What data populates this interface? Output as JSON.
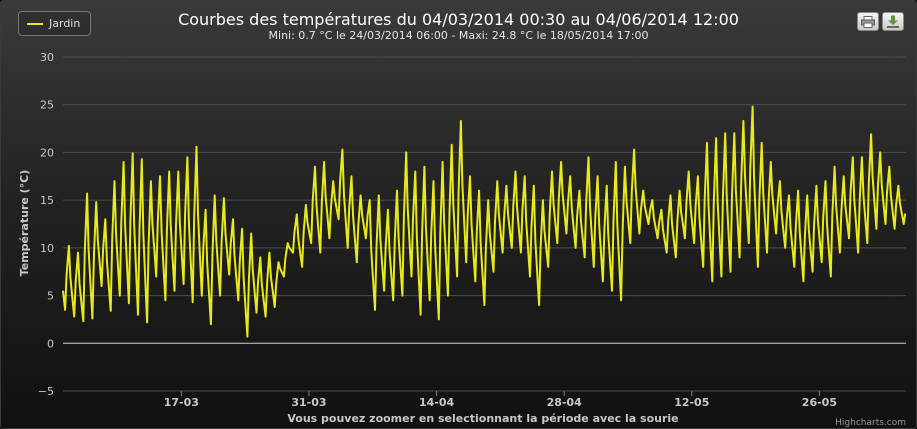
{
  "title": "Courbes des températures du 04/03/2014 00:30 au 04/06/2014 12:00",
  "subtitle": "Mini: 0.7 °C le 24/03/2014 06:00 - Maxi: 24.8 °C le 18/05/2014 17:00",
  "toolbar": {
    "print_icon": "printer-icon",
    "export_icon": "download-icon"
  },
  "credits": "Highcharts.com",
  "colors": {
    "series": "#e8e81e",
    "grid": "#4d4d4d",
    "zero_line": "#cfcfcf"
  },
  "chart_data": {
    "type": "line",
    "title": "Courbes des températures du 04/03/2014 00:30 au 04/06/2014 12:00",
    "subtitle": "Mini: 0.7 °C le 24/03/2014 06:00 - Maxi: 24.8 °C le 18/05/2014 17:00",
    "xlabel": "Vous pouvez zoomer en selectionnant la période avec la sourie",
    "ylabel": "Température (°C)",
    "x_range": [
      "04/03/2014 00:30",
      "04/06/2014 12:00"
    ],
    "x_ticks": [
      "17-03",
      "31-03",
      "14-04",
      "28-04",
      "12-05",
      "26-05"
    ],
    "y_ticks": [
      -5,
      0,
      5,
      10,
      15,
      20,
      25,
      30
    ],
    "ylim": [
      -5,
      30
    ],
    "grid": true,
    "legend_position": "top-left",
    "series": [
      {
        "name": "Jardin",
        "x_dates": [
          "2014-03-04",
          "2014-03-05",
          "2014-03-06",
          "2014-03-07",
          "2014-03-08",
          "2014-03-09",
          "2014-03-10",
          "2014-03-11",
          "2014-03-12",
          "2014-03-13",
          "2014-03-14",
          "2014-03-15",
          "2014-03-16",
          "2014-03-17",
          "2014-03-18",
          "2014-03-19",
          "2014-03-20",
          "2014-03-21",
          "2014-03-22",
          "2014-03-23",
          "2014-03-24",
          "2014-03-25",
          "2014-03-26",
          "2014-03-27",
          "2014-03-28",
          "2014-03-29",
          "2014-03-30",
          "2014-03-31",
          "2014-04-01",
          "2014-04-02",
          "2014-04-03",
          "2014-04-04",
          "2014-04-05",
          "2014-04-06",
          "2014-04-07",
          "2014-04-08",
          "2014-04-09",
          "2014-04-10",
          "2014-04-11",
          "2014-04-12",
          "2014-04-13",
          "2014-04-14",
          "2014-04-15",
          "2014-04-16",
          "2014-04-17",
          "2014-04-18",
          "2014-04-19",
          "2014-04-20",
          "2014-04-21",
          "2014-04-22",
          "2014-04-23",
          "2014-04-24",
          "2014-04-25",
          "2014-04-26",
          "2014-04-27",
          "2014-04-28",
          "2014-04-29",
          "2014-04-30",
          "2014-05-01",
          "2014-05-02",
          "2014-05-03",
          "2014-05-04",
          "2014-05-05",
          "2014-05-06",
          "2014-05-07",
          "2014-05-08",
          "2014-05-09",
          "2014-05-10",
          "2014-05-11",
          "2014-05-12",
          "2014-05-13",
          "2014-05-14",
          "2014-05-15",
          "2014-05-16",
          "2014-05-17",
          "2014-05-18",
          "2014-05-19",
          "2014-05-20",
          "2014-05-21",
          "2014-05-22",
          "2014-05-23",
          "2014-05-24",
          "2014-05-25",
          "2014-05-26",
          "2014-05-27",
          "2014-05-28",
          "2014-05-29",
          "2014-05-30",
          "2014-05-31",
          "2014-06-01",
          "2014-06-02",
          "2014-06-03",
          "2014-06-04"
        ],
        "daily_min": [
          3.5,
          2.8,
          2.3,
          2.6,
          6.0,
          3.4,
          5.0,
          4.2,
          3.0,
          2.2,
          7.0,
          4.5,
          5.5,
          6.2,
          4.3,
          5.0,
          2.0,
          5.0,
          7.2,
          4.5,
          0.7,
          3.2,
          2.8,
          3.8,
          7.0,
          9.5,
          8.0,
          10.5,
          9.5,
          11.0,
          13.0,
          10.0,
          8.5,
          11.0,
          3.5,
          5.5,
          4.5,
          5.0,
          7.0,
          3.0,
          4.5,
          2.5,
          5.0,
          7.0,
          8.5,
          6.5,
          4.0,
          7.5,
          9.5,
          10.0,
          9.5,
          7.0,
          4.0,
          8.0,
          10.5,
          11.5,
          10.0,
          9.0,
          8.0,
          6.5,
          5.5,
          4.5,
          10.5,
          11.5,
          12.5,
          11.0,
          9.5,
          9.0,
          11.0,
          10.5,
          8.0,
          6.5,
          7.0,
          7.5,
          9.0,
          10.5,
          8.0,
          9.5,
          11.5,
          10.0,
          8.0,
          6.5,
          7.5,
          8.5,
          7.0,
          9.5,
          11.0,
          9.5,
          10.5,
          12.0,
          12.5,
          12.0,
          12.5
        ],
        "daily_max": [
          10.2,
          9.5,
          15.7,
          14.8,
          13.0,
          17.0,
          19.0,
          19.9,
          19.3,
          17.0,
          17.5,
          18.0,
          18.0,
          19.5,
          20.6,
          14.0,
          15.5,
          15.2,
          13.0,
          12.0,
          11.5,
          9.0,
          9.5,
          8.5,
          10.5,
          13.5,
          14.5,
          18.5,
          19.0,
          17.0,
          20.3,
          17.5,
          15.5,
          15.0,
          15.5,
          14.0,
          16.0,
          20.0,
          18.0,
          18.5,
          17.0,
          19.0,
          20.8,
          23.3,
          17.5,
          16.0,
          15.0,
          17.0,
          16.5,
          18.0,
          17.5,
          16.5,
          15.0,
          18.0,
          19.0,
          17.5,
          16.0,
          19.5,
          17.5,
          16.5,
          19.0,
          18.5,
          20.3,
          16.0,
          15.0,
          14.0,
          15.5,
          16.0,
          18.0,
          17.5,
          21.0,
          21.5,
          22.0,
          22.0,
          23.3,
          24.8,
          21.0,
          19.0,
          17.0,
          15.5,
          16.0,
          15.5,
          16.5,
          17.0,
          18.5,
          17.5,
          19.5,
          19.5,
          21.9,
          20.0,
          18.5,
          16.5,
          14.5
        ]
      }
    ]
  }
}
